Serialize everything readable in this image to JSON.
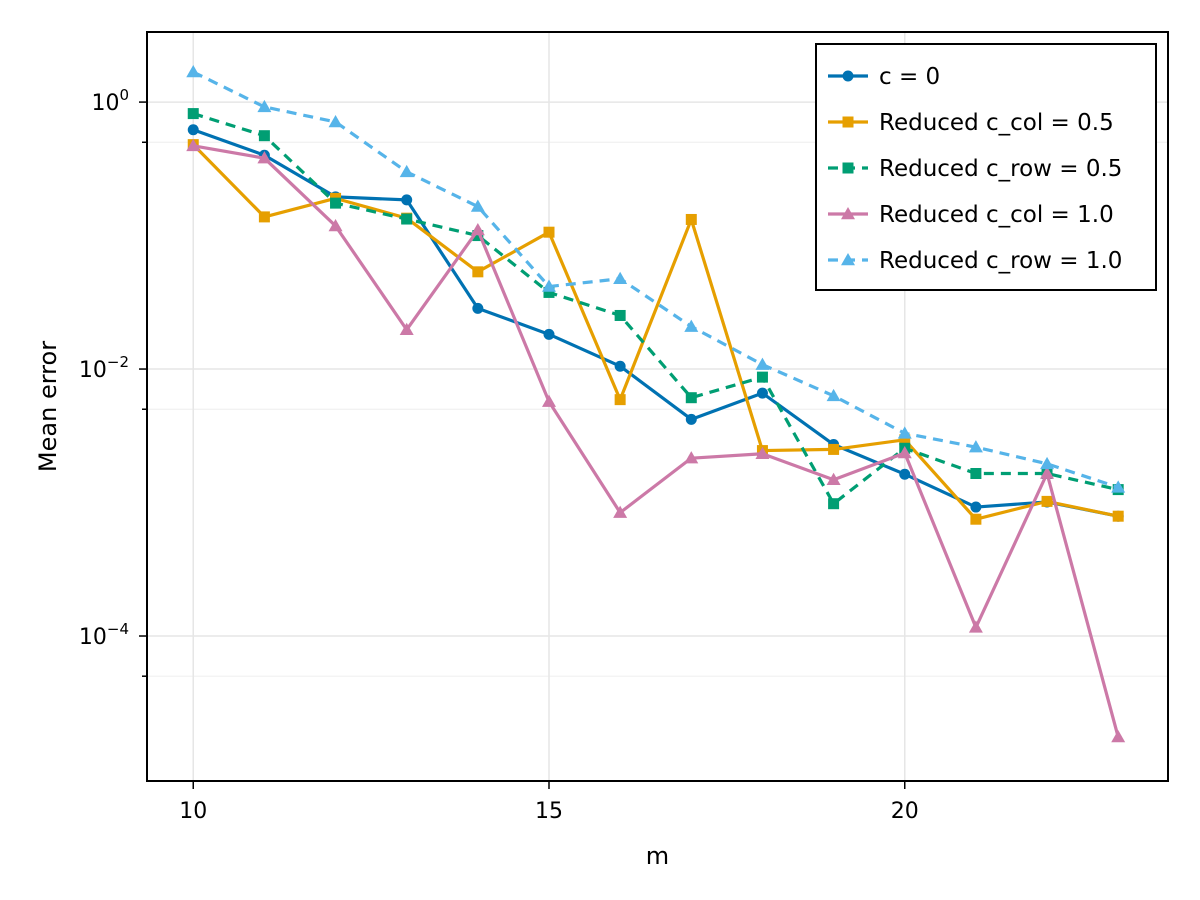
{
  "chart_data": {
    "type": "line",
    "xlabel": "m",
    "ylabel": "Mean error",
    "yscale": "log10",
    "xlim": [
      9.35,
      23.7
    ],
    "ylim": [
      8.2e-06,
      3.35
    ],
    "x_ticks": [
      10,
      15,
      20
    ],
    "y_ticks": [
      {
        "value": 1,
        "base": "10",
        "exp": "0"
      },
      {
        "value": 0.01,
        "base": "10",
        "exp": "−2"
      },
      {
        "value": 0.0001,
        "base": "10",
        "exp": "−4"
      }
    ],
    "y_minor_ticks": [
      0.5,
      0.005,
      5e-05
    ],
    "grid": true,
    "legend_position": "top-right",
    "x": [
      10,
      11,
      12,
      13,
      14,
      15,
      16,
      17,
      18,
      19,
      20,
      21,
      22,
      23
    ],
    "series": [
      {
        "name": "c = 0",
        "color": "#0072B2",
        "marker": "circle",
        "dash": "solid",
        "values": [
          0.62,
          0.4,
          0.195,
          0.185,
          0.0285,
          0.0182,
          0.0105,
          0.0042,
          0.0066,
          0.00272,
          0.00163,
          0.000925,
          0.00101,
          0.00079
        ]
      },
      {
        "name": "Reduced c_col = 0.5",
        "color": "#E69F00",
        "marker": "square",
        "dash": "solid",
        "values": [
          0.48,
          0.138,
          0.19,
          0.135,
          0.0535,
          0.106,
          0.0059,
          0.132,
          0.00245,
          0.0025,
          0.00295,
          0.00075,
          0.00102,
          0.00079
        ]
      },
      {
        "name": "Reduced c_row = 0.5",
        "color": "#009E73",
        "marker": "square",
        "dash": "dash",
        "values": [
          0.82,
          0.56,
          0.175,
          0.133,
          0.1,
          0.0375,
          0.0252,
          0.0061,
          0.0087,
          0.00098,
          0.00255,
          0.00165,
          0.00165,
          0.00125
        ]
      },
      {
        "name": "Reduced c_col = 1.0",
        "color": "#CC79A7",
        "marker": "triangle",
        "dash": "solid",
        "values": [
          0.47,
          0.38,
          0.118,
          0.0197,
          0.11,
          0.0057,
          0.00084,
          0.00215,
          0.00232,
          0.00148,
          0.00235,
          0.000116,
          0.00165,
          1.75e-05
        ]
      },
      {
        "name": "Reduced c_row = 1.0",
        "color": "#56B4E9",
        "marker": "triangle",
        "dash": "dash",
        "values": [
          1.68,
          0.92,
          0.71,
          0.3,
          0.165,
          0.0415,
          0.0475,
          0.0208,
          0.0108,
          0.0063,
          0.0033,
          0.0026,
          0.00195,
          0.0013
        ]
      }
    ]
  }
}
